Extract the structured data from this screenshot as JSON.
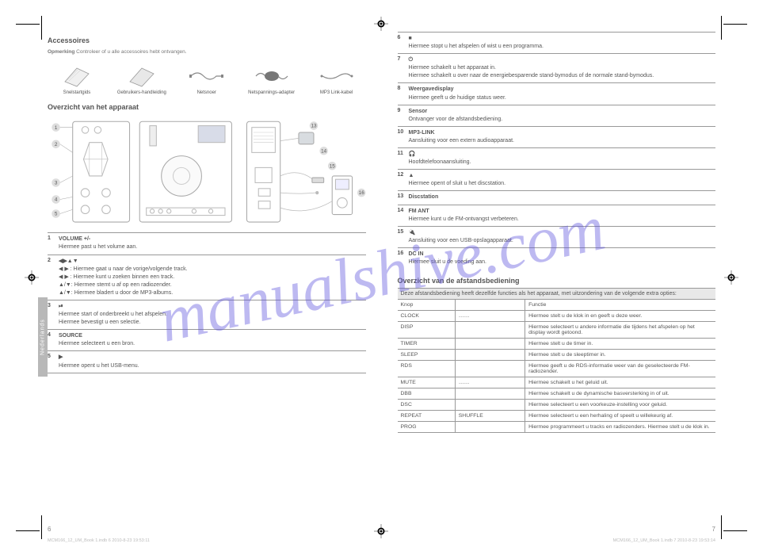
{
  "watermark": "manualshive.com",
  "language_tab": "Nederlands",
  "left": {
    "page_number": "6",
    "footer": "MCM166_12_UM_Book 1.indb   6                                                                   2010-8-23   19:53:11",
    "accessories_title": "Accessoires",
    "accessories_note_strong": "Opmerking",
    "accessories_note": " Controleer of u alle accessoires hebt ontvangen.",
    "accessories": [
      {
        "label": "Snelstartgids"
      },
      {
        "label": "Gebruikers-handleiding"
      },
      {
        "label": "Netsnoer"
      },
      {
        "label": "Netspannings-adapter"
      },
      {
        "label": "MP3 Link-kabel"
      }
    ],
    "main_unit_title": "Overzicht van het apparaat",
    "rows": [
      {
        "n": "1",
        "lines": [
          "VOLUME +/-",
          "Hiermee past u het volume aan."
        ]
      },
      {
        "n": "2",
        "lines": [
          "◀▶▲▼",
          "◀ ▶ : Hiermee gaat u naar de vorige/volgende track.",
          "◀ ▶ : Hiermee kunt u zoeken binnen een track.",
          "▲/▼: Hiermee stemt u af op een radiozender.",
          "▲/▼: Hiermee bladert u door de MP3-albums."
        ]
      },
      {
        "n": "3",
        "lines": [
          "⏯",
          "Hiermee start of onderbreekt u het afspelen.",
          "Hiermee bevestigt u een selectie."
        ]
      },
      {
        "n": "4",
        "lines": [
          "SOURCE",
          "Hiermee selecteert u een bron."
        ]
      },
      {
        "n": "5",
        "lines": [
          "▶",
          "Hiermee opent u het USB-menu."
        ]
      }
    ]
  },
  "right": {
    "page_number": "7",
    "footer": "MCM166_12_UM_Book 1.indb   7                                                                   2010-8-23   19:53:14",
    "rows": [
      {
        "n": "6",
        "lines": [
          "■",
          "Hiermee stopt u het afspelen of wist u een programma."
        ]
      },
      {
        "n": "7",
        "lines": [
          "⏻",
          "Hiermee schakelt u het apparaat in.",
          "Hiermee schakelt u over naar de energiebesparende stand-bymodus of de normale stand-bymodus."
        ]
      },
      {
        "n": "8",
        "lines": [
          "Weergavedisplay",
          "Hiermee geeft u de huidige status weer."
        ]
      },
      {
        "n": "9",
        "lines": [
          "Sensor",
          "Ontvanger voor de afstandsbediening."
        ]
      },
      {
        "n": "10",
        "lines": [
          "MP3-LINK",
          "Aansluiting voor een extern audioapparaat."
        ]
      },
      {
        "n": "11",
        "lines": [
          "🎧",
          "Hoofdtelefoonaansluiting."
        ]
      },
      {
        "n": "12",
        "lines": [
          "▲",
          "Hiermee opent of sluit u het discstation."
        ]
      },
      {
        "n": "13",
        "lines": [
          "Discstation"
        ]
      },
      {
        "n": "14",
        "lines": [
          "FM ANT",
          "Hiermee kunt u de FM-ontvangst verbeteren."
        ]
      },
      {
        "n": "15",
        "lines": [
          "🔌",
          "Aansluiting voor een USB-opslagapparaat."
        ]
      },
      {
        "n": "16",
        "lines": [
          "DC IN",
          "Hiermee sluit u de voeding aan."
        ]
      }
    ],
    "remote_title": "Overzicht van de afstandsbediening",
    "spec_head": "Deze afstandsbediening heeft dezelfde functies als het apparaat, met uitzondering van de volgende extra opties:",
    "specs": [
      {
        "c1": "Knop",
        "c2": "",
        "c3": "Functie",
        "header": true
      },
      {
        "c1": "CLOCK",
        "c2": "……",
        "c3": "Hiermee stelt u de klok in en geeft u deze weer."
      },
      {
        "c1": "DISP",
        "c2": "",
        "c3": "Hiermee selecteert u andere informatie die tijdens het afspelen op het display wordt getoond."
      },
      {
        "c1": "TIMER",
        "c2": "",
        "c3": "Hiermee stelt u de timer in."
      },
      {
        "c1": "SLEEP",
        "c2": "",
        "c3": "Hiermee stelt u de sleeptimer in."
      },
      {
        "c1": "RDS",
        "c2": "",
        "c3": "Hiermee geeft u de RDS-informatie weer van de geselecteerde FM-radiozender."
      },
      {
        "c1": "MUTE",
        "c2": "……",
        "c3": "Hiermee schakelt u het geluid uit."
      },
      {
        "c1": "DBB",
        "c2": "",
        "c3": "Hiermee schakelt u de dynamische basversterking in of uit."
      },
      {
        "c1": "DSC",
        "c2": "",
        "c3": "Hiermee selecteert u een voorkeuze-instelling voor geluid."
      },
      {
        "c1": "REPEAT",
        "c2": "SHUFFLE",
        "c3": "Hiermee selecteert u een herhaling of speelt u willekeurig af."
      },
      {
        "c1": "PROG",
        "c2": "",
        "c3": "Hiermee programmeert u tracks en radiozenders. Hiermee stelt u de klok in."
      }
    ]
  }
}
